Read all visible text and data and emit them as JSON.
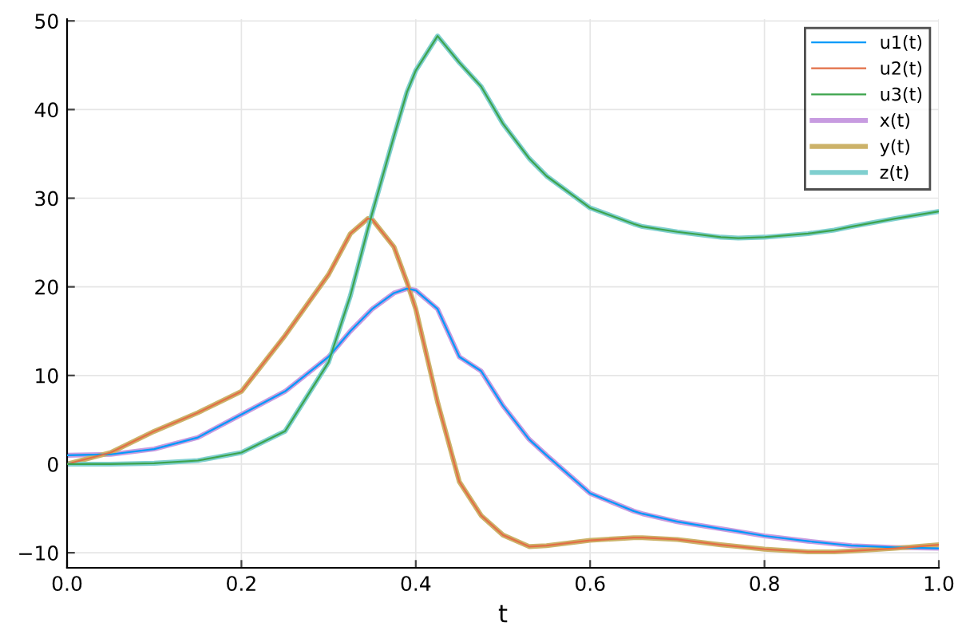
{
  "chart_data": {
    "type": "line",
    "xlabel": "t",
    "x": [
      0,
      0.05,
      0.1,
      0.15,
      0.2,
      0.25,
      0.3,
      0.325,
      0.345,
      0.35,
      0.375,
      0.39,
      0.4,
      0.425,
      0.45,
      0.475,
      0.5,
      0.53,
      0.55,
      0.6,
      0.65,
      0.66,
      0.7,
      0.75,
      0.77,
      0.8,
      0.85,
      0.88,
      0.9,
      0.95,
      1.0
    ],
    "series": [
      {
        "name": "u1(t)",
        "color": "#009af9",
        "values": [
          1,
          1.1,
          1.7,
          3,
          5.6,
          8.2,
          12.1,
          15,
          17,
          17.5,
          19.3,
          19.8,
          19.6,
          17.5,
          12.1,
          10.5,
          6.6,
          2.8,
          1,
          -3.3,
          -5.3,
          -5.6,
          -6.5,
          -7.3,
          -7.6,
          -8.1,
          -8.7,
          -9,
          -9.2,
          -9.4,
          -9.5
        ]
      },
      {
        "name": "u2(t)",
        "color": "#e26f46",
        "values": [
          0,
          1.3,
          3.7,
          5.8,
          8.2,
          14.5,
          21.4,
          26,
          27.7,
          27.6,
          24.5,
          20.5,
          17.5,
          7,
          -2,
          -5.8,
          -8,
          -9.3,
          -9.2,
          -8.6,
          -8.3,
          -8.3,
          -8.5,
          -9.1,
          -9.3,
          -9.6,
          -9.9,
          -9.9,
          -9.8,
          -9.5,
          -9.1
        ]
      },
      {
        "name": "u3(t)",
        "color": "#3da44d",
        "values": [
          0,
          0,
          0.1,
          0.4,
          1.3,
          3.7,
          11.5,
          19,
          26.5,
          28.3,
          37,
          42,
          44.4,
          48.3,
          45.3,
          42.6,
          38.4,
          34.5,
          32.5,
          28.9,
          27.1,
          26.8,
          26.2,
          25.6,
          25.5,
          25.6,
          26,
          26.4,
          26.8,
          27.7,
          28.5
        ]
      },
      {
        "name": "x(t)",
        "color": "#c79be0",
        "values": [
          1,
          1.1,
          1.7,
          3,
          5.6,
          8.2,
          12.1,
          15,
          17,
          17.5,
          19.3,
          19.8,
          19.6,
          17.5,
          12.1,
          10.5,
          6.6,
          2.8,
          1,
          -3.3,
          -5.3,
          -5.6,
          -6.5,
          -7.3,
          -7.6,
          -8.1,
          -8.7,
          -9,
          -9.2,
          -9.4,
          -9.5
        ]
      },
      {
        "name": "y(t)",
        "color": "#ccb269",
        "values": [
          0,
          1.3,
          3.7,
          5.8,
          8.2,
          14.5,
          21.4,
          26,
          27.7,
          27.6,
          24.5,
          20.5,
          17.5,
          7,
          -2,
          -5.8,
          -8,
          -9.3,
          -9.2,
          -8.6,
          -8.3,
          -8.3,
          -8.5,
          -9.1,
          -9.3,
          -9.6,
          -9.9,
          -9.9,
          -9.8,
          -9.5,
          -9.1
        ]
      },
      {
        "name": "z(t)",
        "color": "#7fcfcf",
        "values": [
          0,
          0,
          0.1,
          0.4,
          1.3,
          3.7,
          11.5,
          19,
          26.5,
          28.3,
          37,
          42,
          44.4,
          48.3,
          45.3,
          42.6,
          38.4,
          34.5,
          32.5,
          28.9,
          27.1,
          26.8,
          26.2,
          25.6,
          25.5,
          25.6,
          26,
          26.4,
          26.8,
          27.7,
          28.5
        ]
      }
    ],
    "xlim": [
      0,
      1
    ],
    "ylim": [
      -11.7,
      50.2
    ],
    "xticks": [
      {
        "value": 0,
        "label": "0.0"
      },
      {
        "value": 0.2,
        "label": "0.2"
      },
      {
        "value": 0.4,
        "label": "0.4"
      },
      {
        "value": 0.6,
        "label": "0.6"
      },
      {
        "value": 0.8,
        "label": "0.8"
      },
      {
        "value": 1,
        "label": "1.0"
      }
    ],
    "yticks": [
      {
        "value": -10,
        "label": "−10"
      },
      0,
      10,
      20,
      30,
      40,
      50
    ],
    "grid": true,
    "legend": "top right",
    "line_style": "solid",
    "marker": "none"
  }
}
